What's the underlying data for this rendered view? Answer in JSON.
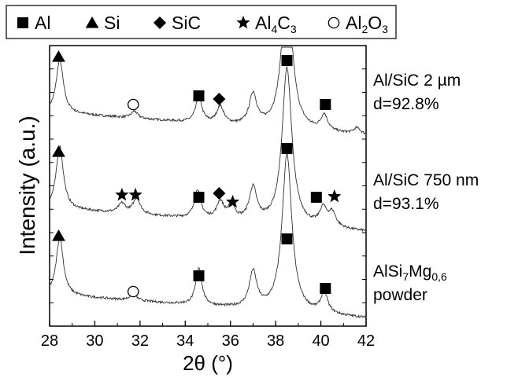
{
  "chart_data": {
    "type": "line",
    "xlabel": "2θ (°)",
    "ylabel": "Intensity (a.u.)",
    "xlim": [
      28,
      42
    ],
    "x_ticks": [
      "28",
      "30",
      "32",
      "34",
      "36",
      "38",
      "40",
      "42"
    ],
    "legend": {
      "placement": "top",
      "items": [
        {
          "symbol": "square",
          "label": "Al",
          "sub": ""
        },
        {
          "symbol": "triangle",
          "label": "Si",
          "sub": ""
        },
        {
          "symbol": "diamond",
          "label": "SiC",
          "sub": ""
        },
        {
          "symbol": "star",
          "label": "Al",
          "sub": "4",
          "label2": "C",
          "sub2": "3"
        },
        {
          "symbol": "circle",
          "label": "Al",
          "sub": "2",
          "label2": "O",
          "sub2": "3"
        }
      ]
    },
    "series": [
      {
        "annotation_lines": [
          {
            "text": "Al/SiC 2 µm"
          },
          {
            "text": "d=92.8%"
          }
        ],
        "markers": [
          {
            "phase": "triangle",
            "x": 28.4
          },
          {
            "phase": "circle",
            "x": 31.7
          },
          {
            "phase": "square",
            "x": 34.6
          },
          {
            "phase": "diamond",
            "x": 35.5
          },
          {
            "phase": "square",
            "x": 38.5
          },
          {
            "phase": "square",
            "x": 40.2
          }
        ]
      },
      {
        "annotation_lines": [
          {
            "text": "Al/SiC 750 nm"
          },
          {
            "text": "d=93.1%"
          }
        ],
        "markers": [
          {
            "phase": "triangle",
            "x": 28.4
          },
          {
            "phase": "star",
            "x": 31.2
          },
          {
            "phase": "star",
            "x": 31.8
          },
          {
            "phase": "square",
            "x": 34.6
          },
          {
            "phase": "diamond",
            "x": 35.5
          },
          {
            "phase": "star",
            "x": 36.1
          },
          {
            "phase": "square",
            "x": 38.5
          },
          {
            "phase": "square",
            "x": 39.8
          },
          {
            "phase": "star",
            "x": 40.6
          }
        ]
      },
      {
        "annotation_lines": [
          {
            "text": "AlSi",
            "sub": "7",
            "text2": "Mg",
            "sub2": "0,6"
          },
          {
            "text": "powder"
          }
        ],
        "markers": [
          {
            "phase": "triangle",
            "x": 28.4
          },
          {
            "phase": "circle",
            "x": 31.7
          },
          {
            "phase": "square",
            "x": 34.6
          },
          {
            "phase": "square",
            "x": 38.5
          },
          {
            "phase": "square",
            "x": 40.2
          }
        ]
      }
    ]
  }
}
